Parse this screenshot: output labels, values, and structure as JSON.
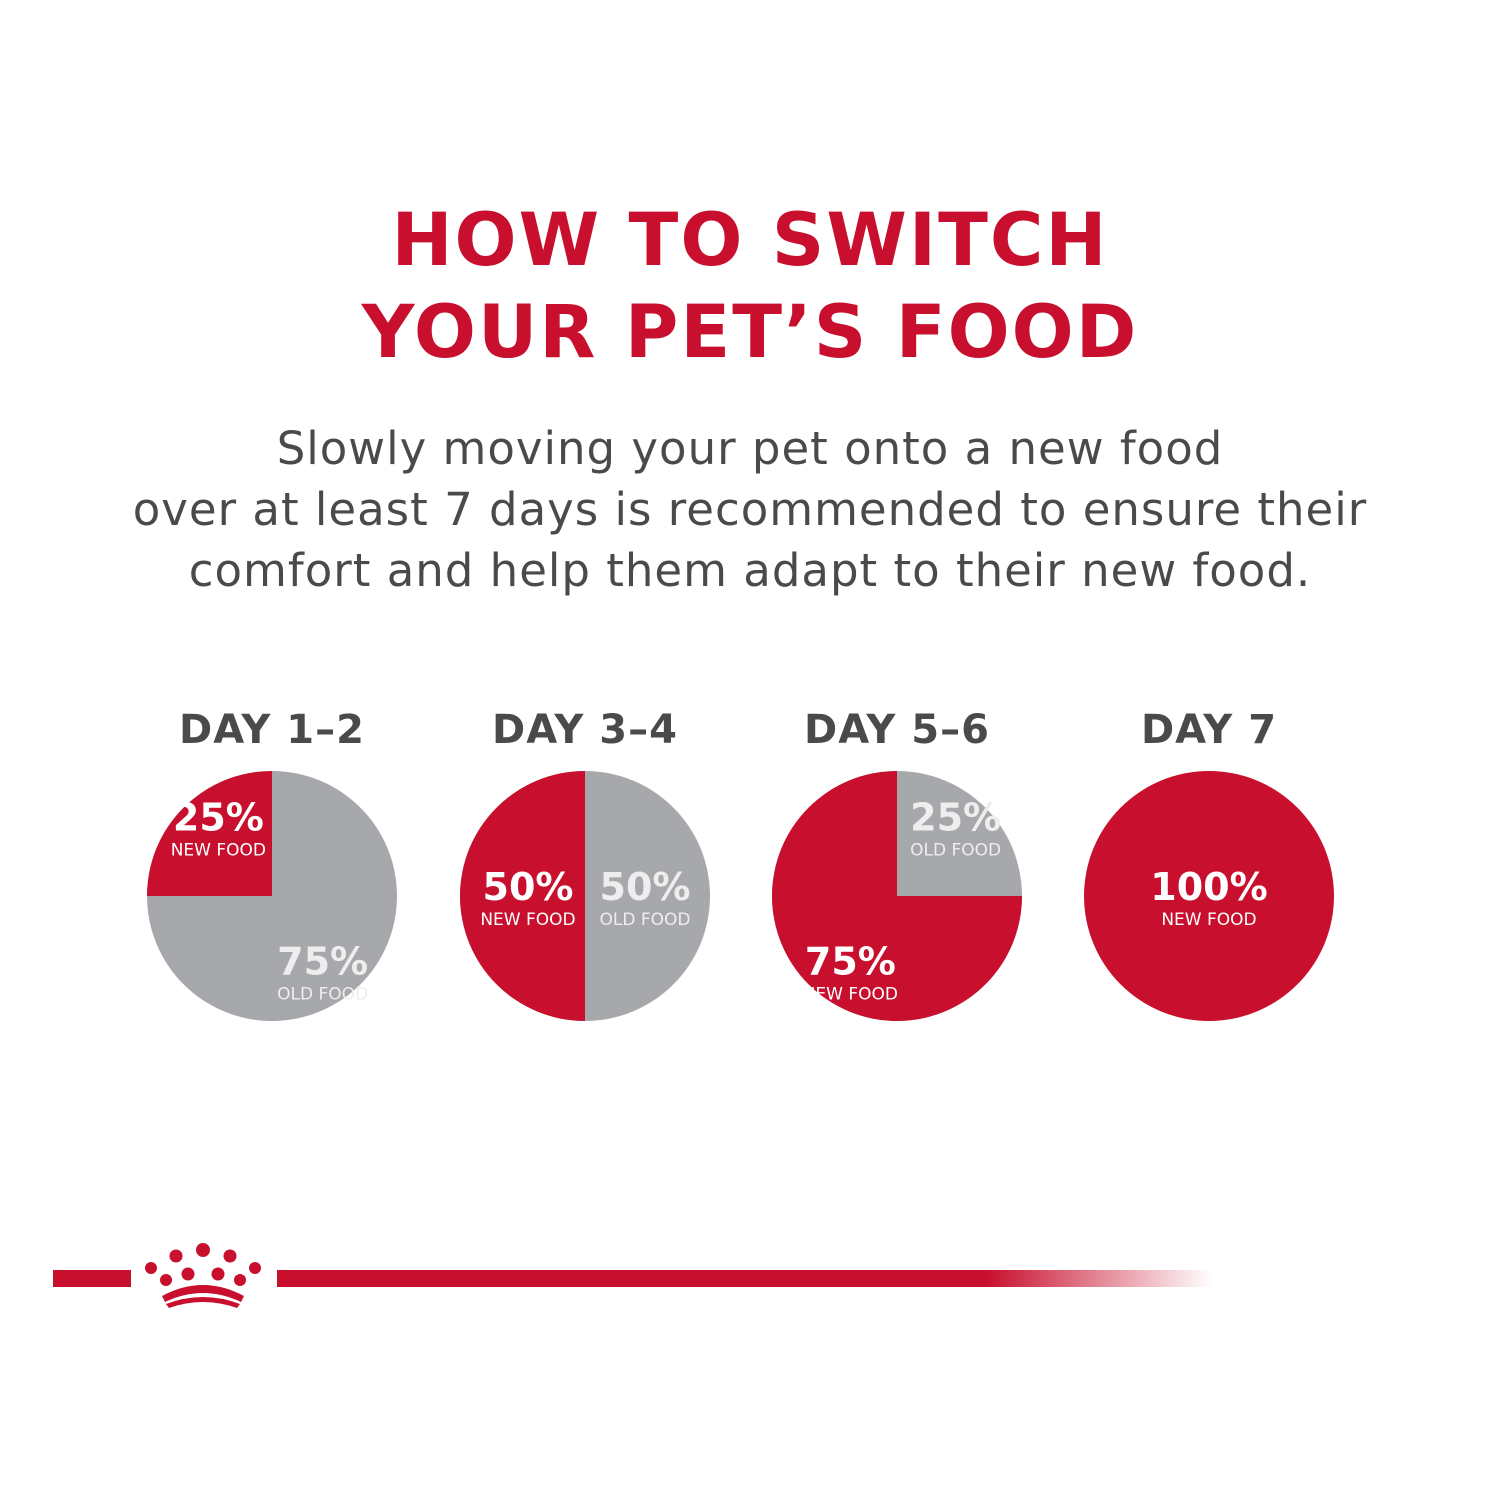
{
  "title": {
    "line1": "HOW TO SWITCH",
    "line2": "YOUR PET’S FOOD"
  },
  "subtitle": {
    "line1": "Slowly moving your pet onto a new food",
    "line2": "over at least 7 days is recommended to ensure their",
    "line3": "comfort and help them adapt to their new food."
  },
  "colors": {
    "brand_red": "#c8102e",
    "old_food_gray": "#a7a8ab",
    "heading_gray": "#4a4a4a",
    "label_white": "#ffffff",
    "old_label_light": "#eeeeee"
  },
  "logo_icon": "royal-crown-icon",
  "chart_data": [
    {
      "type": "pie",
      "title": "DAY 1–2",
      "slices": [
        {
          "name": "NEW FOOD",
          "value": 25,
          "label": "25%"
        },
        {
          "name": "OLD FOOD",
          "value": 75,
          "label": "75%"
        }
      ]
    },
    {
      "type": "pie",
      "title": "DAY 3–4",
      "slices": [
        {
          "name": "NEW FOOD",
          "value": 50,
          "label": "50%"
        },
        {
          "name": "OLD FOOD",
          "value": 50,
          "label": "50%"
        }
      ]
    },
    {
      "type": "pie",
      "title": "DAY 5–6",
      "slices": [
        {
          "name": "NEW FOOD",
          "value": 75,
          "label": "75%"
        },
        {
          "name": "OLD FOOD",
          "value": 25,
          "label": "25%"
        }
      ]
    },
    {
      "type": "pie",
      "title": "DAY 7",
      "slices": [
        {
          "name": "NEW FOOD",
          "value": 100,
          "label": "100%"
        }
      ]
    }
  ]
}
